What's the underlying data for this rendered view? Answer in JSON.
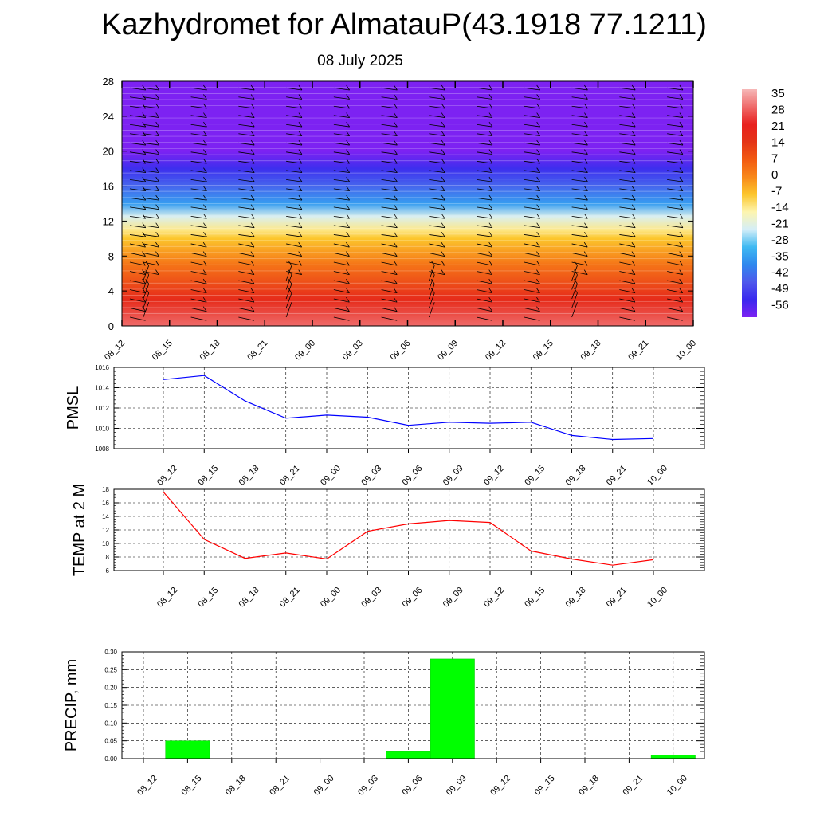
{
  "header": {
    "title": "Kazhydromet for AlmatauP(43.1918 77.1211)",
    "date": "08 July 2025"
  },
  "chart_data": [
    {
      "type": "heatmap",
      "name": "height-temperature-wind",
      "x_ticks": [
        "08_12",
        "08_15",
        "08_18",
        "08_21",
        "09_00",
        "09_03",
        "09_06",
        "09_09",
        "09_12",
        "09_15",
        "09_18",
        "09_21",
        "10_00"
      ],
      "y_ticks": [
        0,
        4,
        8,
        12,
        16,
        20,
        24,
        28
      ],
      "ylim": [
        0,
        28
      ],
      "colorbar_labels": [
        "35",
        "28",
        "21",
        "14",
        "7",
        "0",
        "-7",
        "-14",
        "-21",
        "-28",
        "-35",
        "-42",
        "-49",
        "-56"
      ],
      "colorbar_colors": [
        "#f6b8b8",
        "#ef6a6a",
        "#e8201e",
        "#e43417",
        "#f25a12",
        "#f8881a",
        "#fcc62c",
        "#fdf5b0",
        "#d4eef8",
        "#3fb9f2",
        "#2f88ee",
        "#4f58ec",
        "#3a28ee",
        "#7d22f2"
      ],
      "temperature_profile": [
        {
          "height": 0,
          "value": 28
        },
        {
          "height": 3,
          "value": 17
        },
        {
          "height": 7,
          "value": 3
        },
        {
          "height": 10,
          "value": -7
        },
        {
          "height": 11,
          "value": -12
        },
        {
          "height": 12.5,
          "value": -20
        },
        {
          "height": 14,
          "value": -32
        },
        {
          "height": 16,
          "value": -40
        },
        {
          "height": 18,
          "value": -48
        },
        {
          "height": 20,
          "value": -58
        },
        {
          "height": 21.5,
          "value": -62
        },
        {
          "height": 23,
          "value": -64
        },
        {
          "height": 28,
          "value": -64
        }
      ]
    },
    {
      "type": "line",
      "name": "pmsl",
      "ylabel": "PMSL",
      "categories": [
        "08_12",
        "08_15",
        "08_18",
        "08_21",
        "09_00",
        "09_03",
        "09_06",
        "09_09",
        "09_12",
        "09_15",
        "09_18",
        "09_21",
        "10_00"
      ],
      "values": [
        1014.8,
        1015.2,
        1012.7,
        1011.0,
        1011.3,
        1011.1,
        1010.3,
        1010.6,
        1010.5,
        1010.6,
        1009.3,
        1008.9,
        1009.0
      ],
      "ylim": [
        1008,
        1016
      ],
      "y_ticks": [
        1008,
        1010,
        1012,
        1014,
        1016
      ],
      "color": "#0000ff",
      "grid": true
    },
    {
      "type": "line",
      "name": "temp-2m",
      "ylabel": "TEMP at 2 M",
      "categories": [
        "08_12",
        "08_15",
        "08_18",
        "08_21",
        "09_00",
        "09_03",
        "09_06",
        "09_09",
        "09_12",
        "09_15",
        "09_18",
        "09_21",
        "10_00"
      ],
      "values": [
        17.6,
        10.6,
        7.8,
        8.6,
        7.7,
        11.8,
        12.9,
        13.4,
        13.1,
        8.9,
        7.7,
        6.8,
        7.6
      ],
      "ylim": [
        6,
        18
      ],
      "y_ticks": [
        6,
        8,
        10,
        12,
        14,
        16,
        18
      ],
      "color": "#ff0000",
      "grid": true
    },
    {
      "type": "bar",
      "name": "precip",
      "ylabel": "PRECIP, mm",
      "categories": [
        "08_12",
        "08_15",
        "08_18",
        "08_21",
        "09_00",
        "09_03",
        "09_06",
        "09_09",
        "09_12",
        "09_15",
        "09_18",
        "09_21",
        "10_00"
      ],
      "values": [
        0,
        0.05,
        0,
        0,
        0,
        0,
        0.02,
        0.28,
        0,
        0,
        0,
        0,
        0.01
      ],
      "ylim": [
        0,
        0.3
      ],
      "y_ticks": [
        "0.00",
        "0.05",
        "0.10",
        "0.15",
        "0.20",
        "0.25",
        "0.30"
      ],
      "color": "#00ff00",
      "grid": true
    }
  ]
}
